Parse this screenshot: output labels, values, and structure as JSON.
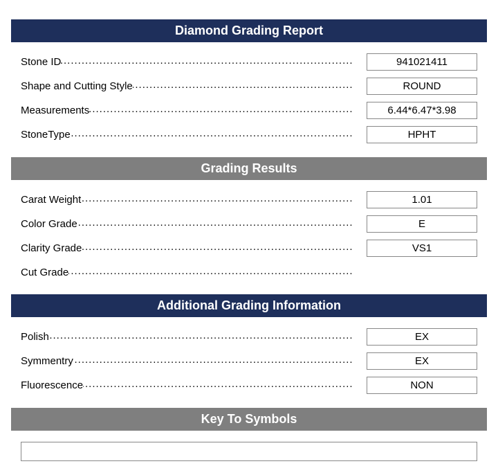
{
  "colors": {
    "header_navy": "#1e2f5b",
    "header_gray": "#7f7f7f",
    "header_text": "#ffffff",
    "body_text": "#000000",
    "box_border": "#888888",
    "background": "#ffffff"
  },
  "typography": {
    "header_fontsize": 18,
    "body_fontsize": 15,
    "font_family": "Arial"
  },
  "sections": [
    {
      "key": "main",
      "title": "Diamond Grading Report",
      "header_color": "#1e2f5b",
      "rows": [
        {
          "label": "Stone ID",
          "value": "941021411"
        },
        {
          "label": "Shape and Cutting Style",
          "value": "ROUND"
        },
        {
          "label": "Measurements",
          "value": "6.44*6.47*3.98"
        },
        {
          "label": "StoneType",
          "value": "HPHT"
        }
      ]
    },
    {
      "key": "grading",
      "title": "Grading Results",
      "header_color": "#7f7f7f",
      "rows": [
        {
          "label": "Carat Weight",
          "value": "1.01"
        },
        {
          "label": "Color Grade",
          "value": "E"
        },
        {
          "label": "Clarity Grade",
          "value": "VS1"
        },
        {
          "label": "Cut Grade",
          "value": ""
        }
      ]
    },
    {
      "key": "additional",
      "title": "Additional Grading Information",
      "header_color": "#1e2f5b",
      "rows": [
        {
          "label": "Polish",
          "value": "EX"
        },
        {
          "label": "Symmentry",
          "value": "EX"
        },
        {
          "label": "Fluorescence",
          "value": "NON"
        }
      ]
    },
    {
      "key": "symbols",
      "title": "Key To Symbols",
      "header_color": "#7f7f7f",
      "rows": []
    }
  ]
}
